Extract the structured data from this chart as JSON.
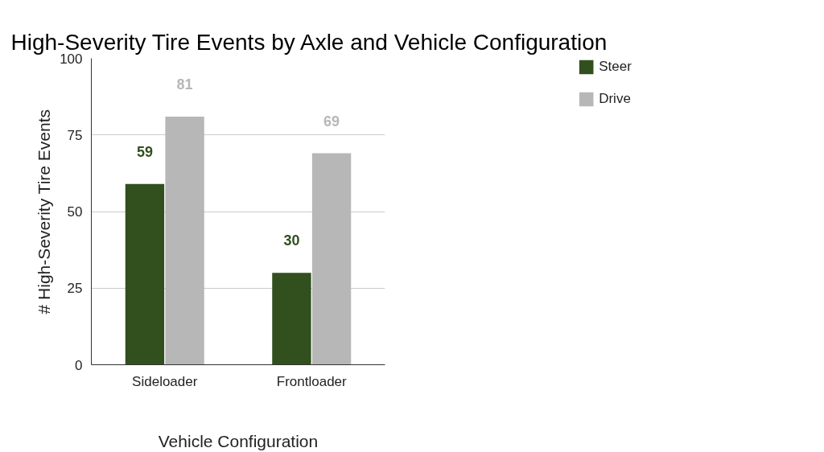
{
  "chart_data": {
    "type": "bar",
    "title": "High-Severity Tire Events by Axle and Vehicle Configuration",
    "xlabel": "Vehicle Configuration",
    "ylabel": "# High-Severity Tire Events",
    "categories": [
      "Sideloader",
      "Frontloader"
    ],
    "series": [
      {
        "name": "Steer",
        "color": "#324f1e",
        "values": [
          59,
          30
        ]
      },
      {
        "name": "Drive",
        "color": "#b7b7b7",
        "values": [
          81,
          69
        ]
      }
    ],
    "ylim": [
      0,
      100
    ],
    "yticks": [
      0,
      25,
      50,
      75,
      100
    ],
    "grid": "y",
    "legend": "top right",
    "data_labels": true
  }
}
